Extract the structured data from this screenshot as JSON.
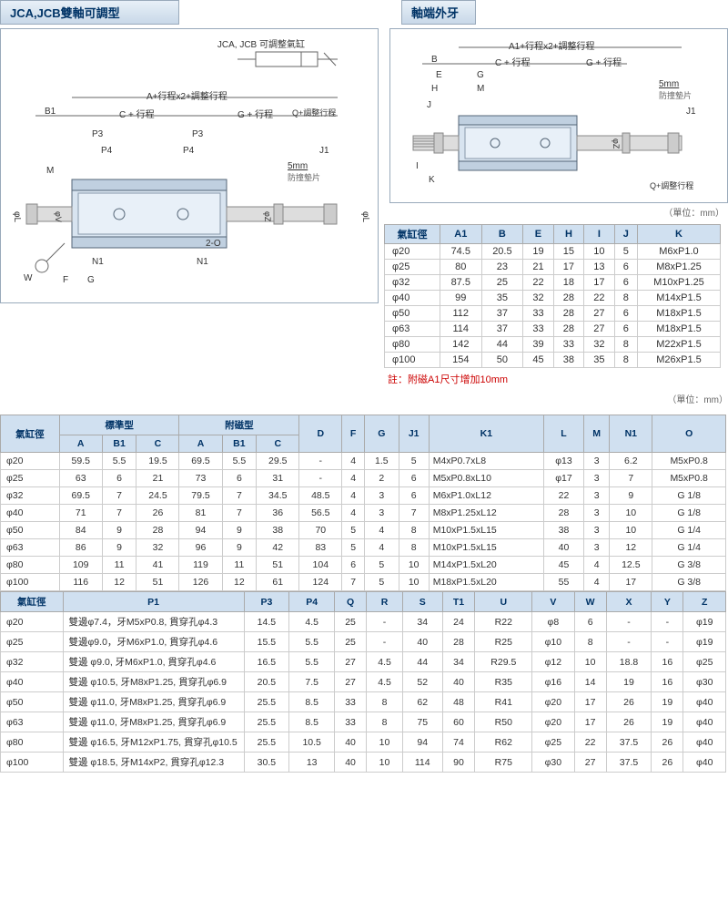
{
  "headers": {
    "tab1": "JCA,JCB雙軸可調型",
    "tab2": "軸端外牙"
  },
  "diagLeft": {
    "title": "JCA, JCB 可調整氣缸",
    "topDim": "A+行程x2+調整行程",
    "dims": [
      "B1",
      "C + 行程",
      "G + 行程",
      "Q+調整行程",
      "P3",
      "P4",
      "J1",
      "M",
      "5mm",
      "防撞墊片",
      "N1",
      "F",
      "G",
      "W",
      "2-O"
    ],
    "phis": [
      "φL",
      "φV",
      "φZ",
      "φL"
    ]
  },
  "diagRight": {
    "topDim": "A1+行程x2+調整行程",
    "dims": [
      "B",
      "C + 行程",
      "G + 行程",
      "E",
      "G",
      "H",
      "M",
      "J",
      "5mm",
      "防撞墊片",
      "J1",
      "Q+調整行程",
      "I",
      "K"
    ],
    "phis": [
      "φZ"
    ]
  },
  "unit": "（單位：mm）",
  "table1": {
    "headers": [
      "氣缸徑",
      "A1",
      "B",
      "E",
      "H",
      "I",
      "J",
      "K"
    ],
    "rows": [
      [
        "φ20",
        "74.5",
        "20.5",
        "19",
        "15",
        "10",
        "5",
        "M6xP1.0"
      ],
      [
        "φ25",
        "80",
        "23",
        "21",
        "17",
        "13",
        "6",
        "M8xP1.25"
      ],
      [
        "φ32",
        "87.5",
        "25",
        "22",
        "18",
        "17",
        "6",
        "M10xP1.25"
      ],
      [
        "φ40",
        "99",
        "35",
        "32",
        "28",
        "22",
        "8",
        "M14xP1.5"
      ],
      [
        "φ50",
        "112",
        "37",
        "33",
        "28",
        "27",
        "6",
        "M18xP1.5"
      ],
      [
        "φ63",
        "114",
        "37",
        "33",
        "28",
        "27",
        "6",
        "M18xP1.5"
      ],
      [
        "φ80",
        "142",
        "44",
        "39",
        "33",
        "32",
        "8",
        "M22xP1.5"
      ],
      [
        "φ100",
        "154",
        "50",
        "45",
        "38",
        "35",
        "8",
        "M26xP1.5"
      ]
    ],
    "note": "註：附磁A1尺寸增加10mm"
  },
  "table2": {
    "headerTop": [
      "氣缸徑",
      "標準型",
      "附磁型",
      "D",
      "F",
      "G",
      "J1",
      "K1",
      "L",
      "M",
      "N1",
      "O"
    ],
    "headerSub": [
      "A",
      "B1",
      "C",
      "A",
      "B1",
      "C"
    ],
    "rows": [
      [
        "φ20",
        "59.5",
        "5.5",
        "19.5",
        "69.5",
        "5.5",
        "29.5",
        "-",
        "4",
        "1.5",
        "5",
        "M4xP0.7xL8",
        "φ13",
        "3",
        "6.2",
        "M5xP0.8"
      ],
      [
        "φ25",
        "63",
        "6",
        "21",
        "73",
        "6",
        "31",
        "-",
        "4",
        "2",
        "6",
        "M5xP0.8xL10",
        "φ17",
        "3",
        "7",
        "M5xP0.8"
      ],
      [
        "φ32",
        "69.5",
        "7",
        "24.5",
        "79.5",
        "7",
        "34.5",
        "48.5",
        "4",
        "3",
        "6",
        "M6xP1.0xL12",
        "22",
        "3",
        "9",
        "G 1/8"
      ],
      [
        "φ40",
        "71",
        "7",
        "26",
        "81",
        "7",
        "36",
        "56.5",
        "4",
        "3",
        "7",
        "M8xP1.25xL12",
        "28",
        "3",
        "10",
        "G 1/8"
      ],
      [
        "φ50",
        "84",
        "9",
        "28",
        "94",
        "9",
        "38",
        "70",
        "5",
        "4",
        "8",
        "M10xP1.5xL15",
        "38",
        "3",
        "10",
        "G 1/4"
      ],
      [
        "φ63",
        "86",
        "9",
        "32",
        "96",
        "9",
        "42",
        "83",
        "5",
        "4",
        "8",
        "M10xP1.5xL15",
        "40",
        "3",
        "12",
        "G 1/4"
      ],
      [
        "φ80",
        "109",
        "11",
        "41",
        "119",
        "11",
        "51",
        "104",
        "6",
        "5",
        "10",
        "M14xP1.5xL20",
        "45",
        "4",
        "12.5",
        "G 3/8"
      ],
      [
        "φ100",
        "116",
        "12",
        "51",
        "126",
        "12",
        "61",
        "124",
        "7",
        "5",
        "10",
        "M18xP1.5xL20",
        "55",
        "4",
        "17",
        "G 3/8"
      ]
    ]
  },
  "table3": {
    "headers": [
      "氣缸徑",
      "P1",
      "P3",
      "P4",
      "Q",
      "R",
      "S",
      "T1",
      "U",
      "V",
      "W",
      "X",
      "Y",
      "Z"
    ],
    "rows": [
      [
        "φ20",
        "雙邊φ7.4，牙M5xP0.8, 貫穿孔φ4.3",
        "14.5",
        "4.5",
        "25",
        "-",
        "34",
        "24",
        "R22",
        "φ8",
        "6",
        "-",
        "-",
        "φ19"
      ],
      [
        "φ25",
        "雙邊φ9.0，牙M6xP1.0, 貫穿孔φ4.6",
        "15.5",
        "5.5",
        "25",
        "-",
        "40",
        "28",
        "R25",
        "φ10",
        "8",
        "-",
        "-",
        "φ19"
      ],
      [
        "φ32",
        "雙邊 φ9.0, 牙M6xP1.0, 貫穿孔φ4.6",
        "16.5",
        "5.5",
        "27",
        "4.5",
        "44",
        "34",
        "R29.5",
        "φ12",
        "10",
        "18.8",
        "16",
        "φ25"
      ],
      [
        "φ40",
        "雙邊 φ10.5, 牙M8xP1.25, 貫穿孔φ6.9",
        "20.5",
        "7.5",
        "27",
        "4.5",
        "52",
        "40",
        "R35",
        "φ16",
        "14",
        "19",
        "16",
        "φ30"
      ],
      [
        "φ50",
        "雙邊 φ11.0, 牙M8xP1.25, 貫穿孔φ6.9",
        "25.5",
        "8.5",
        "33",
        "8",
        "62",
        "48",
        "R41",
        "φ20",
        "17",
        "26",
        "19",
        "φ40"
      ],
      [
        "φ63",
        "雙邊 φ11.0, 牙M8xP1.25, 貫穿孔φ6.9",
        "25.5",
        "8.5",
        "33",
        "8",
        "75",
        "60",
        "R50",
        "φ20",
        "17",
        "26",
        "19",
        "φ40"
      ],
      [
        "φ80",
        "雙邊 φ16.5, 牙M12xP1.75, 貫穿孔φ10.5",
        "25.5",
        "10.5",
        "40",
        "10",
        "94",
        "74",
        "R62",
        "φ25",
        "22",
        "37.5",
        "26",
        "φ40"
      ],
      [
        "φ100",
        "雙邊 φ18.5, 牙M14xP2, 貫穿孔φ12.3",
        "30.5",
        "13",
        "40",
        "10",
        "114",
        "90",
        "R75",
        "φ30",
        "27",
        "37.5",
        "26",
        "φ40"
      ]
    ]
  }
}
